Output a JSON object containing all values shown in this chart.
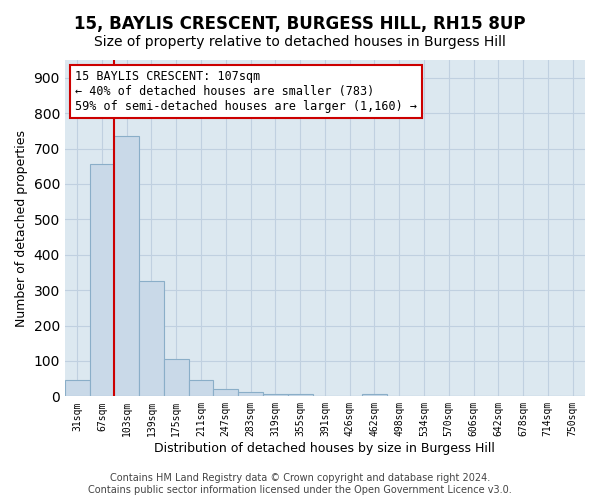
{
  "title": "15, BAYLIS CRESCENT, BURGESS HILL, RH15 8UP",
  "subtitle": "Size of property relative to detached houses in Burgess Hill",
  "xlabel": "Distribution of detached houses by size in Burgess Hill",
  "ylabel": "Number of detached properties",
  "bin_labels": [
    "31sqm",
    "67sqm",
    "103sqm",
    "139sqm",
    "175sqm",
    "211sqm",
    "247sqm",
    "283sqm",
    "319sqm",
    "355sqm",
    "391sqm",
    "426sqm",
    "462sqm",
    "498sqm",
    "534sqm",
    "570sqm",
    "606sqm",
    "642sqm",
    "678sqm",
    "714sqm",
    "750sqm"
  ],
  "bar_values": [
    47,
    655,
    735,
    325,
    105,
    47,
    20,
    13,
    8,
    8,
    0,
    0,
    8,
    0,
    0,
    0,
    0,
    0,
    0,
    0,
    0
  ],
  "bar_color": "#c9d9e8",
  "bar_edge_color": "#8aaec8",
  "bar_edge_width": 0.8,
  "grid_color": "#c0d0e0",
  "background_color": "#dce8f0",
  "ylim": [
    0,
    950
  ],
  "yticks": [
    0,
    100,
    200,
    300,
    400,
    500,
    600,
    700,
    800,
    900
  ],
  "vline_x_index": 2,
  "vline_color": "#cc0000",
  "annotation_text": "15 BAYLIS CRESCENT: 107sqm\n← 40% of detached houses are smaller (783)\n59% of semi-detached houses are larger (1,160) →",
  "annotation_box_color": "#ffffff",
  "annotation_box_edge": "#cc0000",
  "footer_text": "Contains HM Land Registry data © Crown copyright and database right 2024.\nContains public sector information licensed under the Open Government Licence v3.0.",
  "title_fontsize": 12,
  "subtitle_fontsize": 10,
  "xlabel_fontsize": 9,
  "ylabel_fontsize": 9,
  "tick_fontsize": 7,
  "annotation_fontsize": 8.5,
  "footer_fontsize": 7
}
